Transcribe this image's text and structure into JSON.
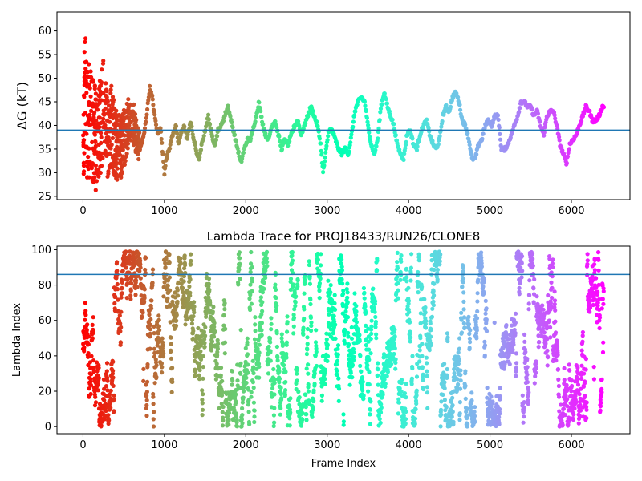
{
  "chart_data": [
    {
      "type": "scatter",
      "title": "",
      "xlabel": "",
      "ylabel": "ΔG (kT)",
      "xlim": [
        -320,
        6720
      ],
      "ylim": [
        24.3,
        64
      ],
      "xticks": [
        0,
        1000,
        2000,
        3000,
        4000,
        5000,
        6000
      ],
      "yticks": [
        25,
        30,
        35,
        40,
        45,
        50,
        55,
        60
      ],
      "hline": 39.0,
      "hline_color": "#1f77b4",
      "colormap": "rainbow",
      "x_range_of_data": [
        0,
        6400
      ],
      "trace": [
        [
          0,
          38
        ],
        [
          20,
          47
        ],
        [
          60,
          40
        ],
        [
          100,
          42
        ],
        [
          150,
          37
        ],
        [
          200,
          39
        ],
        [
          250,
          44
        ],
        [
          300,
          38
        ],
        [
          350,
          40
        ],
        [
          400,
          36
        ],
        [
          450,
          35
        ],
        [
          500,
          37
        ],
        [
          550,
          40
        ],
        [
          600,
          42
        ],
        [
          650,
          38
        ],
        [
          700,
          35
        ],
        [
          750,
          38
        ],
        [
          780,
          42
        ],
        [
          820,
          48
        ],
        [
          850,
          46
        ],
        [
          880,
          42
        ],
        [
          920,
          38
        ],
        [
          950,
          40
        ],
        [
          980,
          34
        ],
        [
          1000,
          30
        ],
        [
          1020,
          33
        ],
        [
          1060,
          35
        ],
        [
          1100,
          38
        ],
        [
          1140,
          40
        ],
        [
          1170,
          36
        ],
        [
          1200,
          38
        ],
        [
          1240,
          40
        ],
        [
          1280,
          37
        ],
        [
          1320,
          41
        ],
        [
          1360,
          37
        ],
        [
          1400,
          34
        ],
        [
          1430,
          33
        ],
        [
          1460,
          36
        ],
        [
          1500,
          39
        ],
        [
          1540,
          42
        ],
        [
          1580,
          38
        ],
        [
          1620,
          36
        ],
        [
          1660,
          39
        ],
        [
          1700,
          40
        ],
        [
          1740,
          42
        ],
        [
          1780,
          44
        ],
        [
          1820,
          41
        ],
        [
          1860,
          38
        ],
        [
          1900,
          35
        ],
        [
          1940,
          32
        ],
        [
          1980,
          35
        ],
        [
          2020,
          37
        ],
        [
          2060,
          37
        ],
        [
          2100,
          40
        ],
        [
          2140,
          43
        ],
        [
          2160,
          45
        ],
        [
          2200,
          41
        ],
        [
          2240,
          38
        ],
        [
          2280,
          37
        ],
        [
          2320,
          40
        ],
        [
          2360,
          41
        ],
        [
          2400,
          38
        ],
        [
          2440,
          35
        ],
        [
          2480,
          37
        ],
        [
          2520,
          36
        ],
        [
          2560,
          38
        ],
        [
          2600,
          40
        ],
        [
          2640,
          41
        ],
        [
          2680,
          38
        ],
        [
          2720,
          40
        ],
        [
          2760,
          42
        ],
        [
          2800,
          44
        ],
        [
          2840,
          42
        ],
        [
          2880,
          40
        ],
        [
          2920,
          36
        ],
        [
          2950,
          30
        ],
        [
          2980,
          34
        ],
        [
          3020,
          39
        ],
        [
          3060,
          39
        ],
        [
          3100,
          37
        ],
        [
          3140,
          35
        ],
        [
          3180,
          34
        ],
        [
          3220,
          35
        ],
        [
          3260,
          34
        ],
        [
          3300,
          38
        ],
        [
          3340,
          43
        ],
        [
          3380,
          45
        ],
        [
          3420,
          46
        ],
        [
          3460,
          45
        ],
        [
          3500,
          40
        ],
        [
          3540,
          36
        ],
        [
          3580,
          34
        ],
        [
          3620,
          37
        ],
        [
          3660,
          44
        ],
        [
          3700,
          47
        ],
        [
          3740,
          44
        ],
        [
          3780,
          42
        ],
        [
          3820,
          40
        ],
        [
          3860,
          36
        ],
        [
          3900,
          34
        ],
        [
          3940,
          33
        ],
        [
          3980,
          38
        ],
        [
          4020,
          39
        ],
        [
          4060,
          36
        ],
        [
          4100,
          35
        ],
        [
          4140,
          38
        ],
        [
          4180,
          40
        ],
        [
          4220,
          41
        ],
        [
          4260,
          38
        ],
        [
          4300,
          36
        ],
        [
          4340,
          35
        ],
        [
          4380,
          37
        ],
        [
          4420,
          42
        ],
        [
          4460,
          44
        ],
        [
          4500,
          43
        ],
        [
          4540,
          46
        ],
        [
          4580,
          47
        ],
        [
          4620,
          45
        ],
        [
          4660,
          41
        ],
        [
          4700,
          40
        ],
        [
          4740,
          37
        ],
        [
          4780,
          33
        ],
        [
          4820,
          33
        ],
        [
          4860,
          36
        ],
        [
          4900,
          37
        ],
        [
          4940,
          40
        ],
        [
          4980,
          41
        ],
        [
          5020,
          40
        ],
        [
          5060,
          42
        ],
        [
          5100,
          42
        ],
        [
          5140,
          35
        ],
        [
          5180,
          35
        ],
        [
          5220,
          36
        ],
        [
          5260,
          38
        ],
        [
          5300,
          40
        ],
        [
          5340,
          42
        ],
        [
          5380,
          45
        ],
        [
          5420,
          45
        ],
        [
          5460,
          44
        ],
        [
          5500,
          44
        ],
        [
          5540,
          42
        ],
        [
          5580,
          43
        ],
        [
          5620,
          40
        ],
        [
          5660,
          38
        ],
        [
          5700,
          42
        ],
        [
          5740,
          43
        ],
        [
          5780,
          43
        ],
        [
          5820,
          40
        ],
        [
          5860,
          36
        ],
        [
          5900,
          34
        ],
        [
          5940,
          32
        ],
        [
          5980,
          36
        ],
        [
          6020,
          37
        ],
        [
          6060,
          38
        ],
        [
          6100,
          40
        ],
        [
          6140,
          42
        ],
        [
          6180,
          44
        ],
        [
          6220,
          43
        ],
        [
          6260,
          41
        ],
        [
          6300,
          41
        ],
        [
          6340,
          42
        ],
        [
          6380,
          44
        ],
        [
          6400,
          44
        ]
      ]
    },
    {
      "type": "scatter",
      "title": "Lambda Trace for PROJ18433/RUN26/CLONE8",
      "xlabel": "Frame Index",
      "ylabel": "Lambda Index",
      "xlim": [
        -320,
        6720
      ],
      "ylim": [
        -4,
        102
      ],
      "xticks": [
        0,
        1000,
        2000,
        3000,
        4000,
        5000,
        6000
      ],
      "yticks": [
        0,
        20,
        40,
        60,
        80,
        100
      ],
      "hline": 86,
      "hline_color": "#1f77b4",
      "colormap": "rainbow",
      "x_range_of_data": [
        0,
        6400
      ],
      "y_range_of_data": [
        0,
        99
      ]
    }
  ],
  "xtick_labels": [
    "0",
    "1000",
    "2000",
    "3000",
    "4000",
    "5000",
    "6000"
  ],
  "top_ytick_labels": [
    "25",
    "30",
    "35",
    "40",
    "45",
    "50",
    "55",
    "60"
  ],
  "bottom_ytick_labels": [
    "0",
    "20",
    "40",
    "60",
    "80",
    "100"
  ]
}
